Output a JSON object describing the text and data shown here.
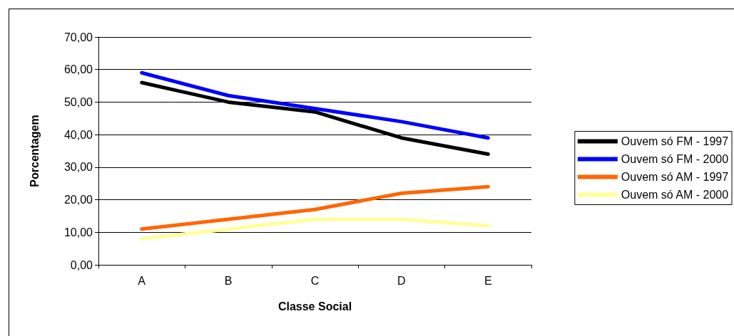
{
  "chart_data": {
    "type": "line",
    "xlabel": "Classe Social",
    "ylabel": "Porcentagem",
    "categories": [
      "A",
      "B",
      "C",
      "D",
      "E"
    ],
    "series": [
      {
        "name": "Ouvem só FM - 1997",
        "color": "#000000",
        "values": [
          56,
          50,
          47,
          39,
          34
        ]
      },
      {
        "name": "Ouvem só FM - 2000",
        "color": "#0000ff",
        "values": [
          59,
          52,
          48,
          44,
          39
        ]
      },
      {
        "name": "Ouvem só AM - 1997",
        "color": "#ff6600",
        "values": [
          11,
          14,
          17,
          22,
          24
        ]
      },
      {
        "name": "Ouvem só AM - 2000",
        "color": "#ffff99",
        "values": [
          8,
          11,
          14,
          14,
          12
        ]
      }
    ],
    "ylim": [
      0,
      70
    ],
    "yticks": [
      {
        "value": 0,
        "label": "0,00"
      },
      {
        "value": 10,
        "label": "10,00"
      },
      {
        "value": 20,
        "label": "20,00"
      },
      {
        "value": 30,
        "label": "30,00"
      },
      {
        "value": 40,
        "label": "40,00"
      },
      {
        "value": 50,
        "label": "50,00"
      },
      {
        "value": 60,
        "label": "60,00"
      },
      {
        "value": 70,
        "label": "70,00"
      }
    ],
    "grid": "y",
    "legend": "right",
    "marker": "none",
    "line_style": "solid"
  }
}
